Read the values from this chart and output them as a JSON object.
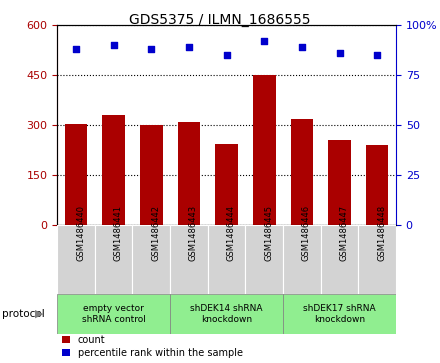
{
  "title": "GDS5375 / ILMN_1686555",
  "samples": [
    "GSM1486440",
    "GSM1486441",
    "GSM1486442",
    "GSM1486443",
    "GSM1486444",
    "GSM1486445",
    "GSM1486446",
    "GSM1486447",
    "GSM1486448"
  ],
  "counts": [
    305,
    330,
    300,
    310,
    245,
    450,
    320,
    255,
    240
  ],
  "percentiles": [
    88,
    90,
    88,
    89,
    85,
    92,
    89,
    86,
    85
  ],
  "bar_color": "#AA0000",
  "dot_color": "#0000CC",
  "ylim_left": [
    0,
    600
  ],
  "ylim_right": [
    0,
    100
  ],
  "yticks_left": [
    0,
    150,
    300,
    450,
    600
  ],
  "yticks_right": [
    0,
    25,
    50,
    75,
    100
  ],
  "groups": [
    {
      "label": "empty vector\nshRNA control",
      "start": 0,
      "end": 3
    },
    {
      "label": "shDEK14 shRNA\nknockdown",
      "start": 3,
      "end": 6
    },
    {
      "label": "shDEK17 shRNA\nknockdown",
      "start": 6,
      "end": 9
    }
  ],
  "group_color": "#90EE90",
  "sample_box_color": "#D3D3D3",
  "protocol_label": "protocol",
  "legend_count_label": "count",
  "legend_percentile_label": "percentile rank within the sample",
  "background_color": "#FFFFFF",
  "plot_bg_color": "#FFFFFF",
  "tick_color_left": "#AA0000",
  "tick_color_right": "#0000CC",
  "bar_width": 0.6
}
